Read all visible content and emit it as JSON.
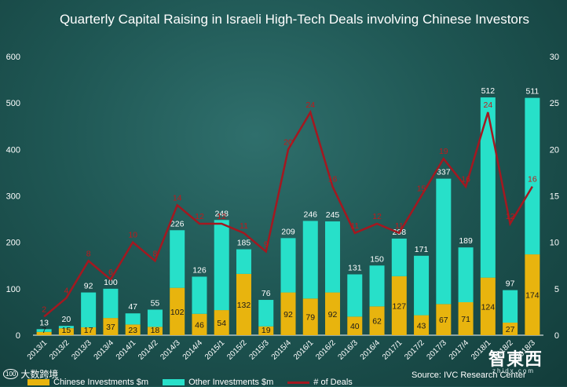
{
  "chart_data": {
    "type": "bar",
    "stacked": true,
    "title": "Quarterly Capital Raising in Israeli High-Tech Deals involving Chinese Investors",
    "categories": [
      "2013/1",
      "2013/2",
      "2013/3",
      "2013/4",
      "2014/1",
      "2014/2",
      "2014/3",
      "2014/4",
      "2015/1",
      "2015/2",
      "2015/3",
      "2015/4",
      "2016/1",
      "2016/2",
      "2016/3",
      "2016/4",
      "2017/1",
      "2017/2",
      "2017/3",
      "2017/4",
      "2018/1",
      "2018/2",
      "2018/3"
    ],
    "series": [
      {
        "name": "Chinese Investments $m",
        "axis": "left",
        "color": "#e8b40e",
        "values": [
          7,
          15,
          17,
          37,
          23,
          18,
          102,
          46,
          54,
          132,
          19,
          92,
          79,
          92,
          40,
          62,
          127,
          43,
          67,
          71,
          124,
          27,
          174
        ]
      },
      {
        "name": "Other Investments $m",
        "axis": "left",
        "color": "#27e0c9",
        "values": [
          6,
          5,
          75,
          63,
          24,
          37,
          124,
          80,
          194,
          53,
          57,
          117,
          167,
          153,
          91,
          88,
          81,
          128,
          270,
          118,
          388,
          70,
          337
        ]
      },
      {
        "name": "# of Deals",
        "axis": "right",
        "type": "line",
        "color": "#a31820",
        "values": [
          2,
          4,
          8,
          6,
          10,
          8,
          14,
          12,
          12,
          11,
          9,
          20,
          24,
          16,
          11,
          12,
          11,
          15,
          19,
          16,
          24,
          12,
          16
        ]
      }
    ],
    "totals": [
      13,
      20,
      92,
      100,
      47,
      55,
      226,
      126,
      248,
      185,
      76,
      209,
      246,
      245,
      131,
      150,
      208,
      171,
      337,
      189,
      512,
      97,
      511
    ],
    "chinese_labels": [
      "7",
      "15",
      "17",
      "37",
      "23",
      "18",
      "102",
      "46",
      "54",
      "132",
      "19",
      "92",
      "79",
      "92",
      "40",
      "62",
      "127",
      "43",
      "67",
      "71",
      "124",
      "27",
      "174"
    ],
    "deal_labels": [
      "2",
      "4",
      "8",
      "6",
      "10",
      "8",
      "14",
      "12",
      "12",
      "11",
      "9",
      "20",
      "24",
      "16",
      "11",
      "12",
      "11",
      "15",
      "19",
      "16",
      "24",
      "12",
      "16"
    ],
    "ylim": [
      0,
      600
    ],
    "y2lim": [
      0,
      30
    ],
    "yticks": [
      "0",
      "100",
      "200",
      "300",
      "400",
      "500",
      "600"
    ],
    "y2ticks": [
      "0",
      "5",
      "10",
      "15",
      "20",
      "25",
      "30"
    ],
    "legend": {
      "position": "bottom",
      "items": [
        "Chinese Investments $m",
        "Other Investments $m",
        "# of Deals"
      ]
    },
    "source": "Source: IVC Research Center"
  },
  "branding": {
    "left_logo_text": "大数跨境",
    "left_logo_mark": "100",
    "right_logo_text": "智東西",
    "right_logo_sub": "zhidx.com"
  }
}
